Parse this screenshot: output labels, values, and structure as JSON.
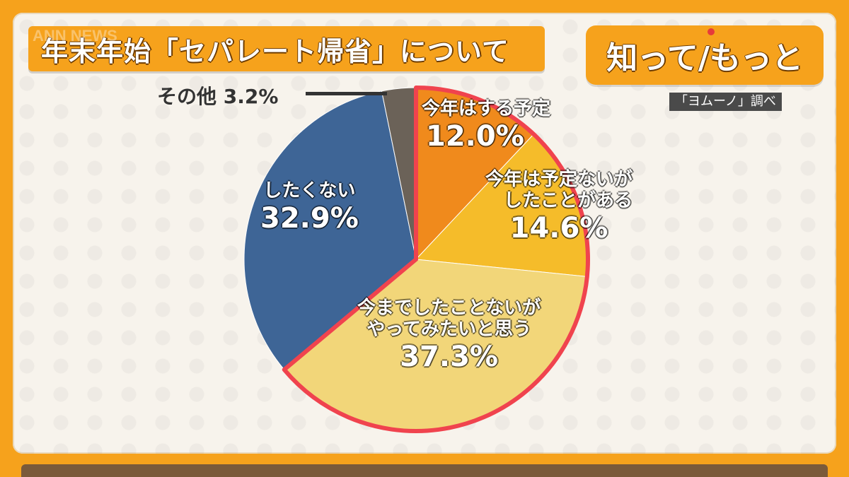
{
  "header": {
    "title": "年末年始「セパレート帰省」について",
    "brand": "知って/もっと",
    "source": "「ヨムーノ」調べ",
    "watermark": "ANN NEWS"
  },
  "colors": {
    "background": "#f6a21c",
    "slice_plan": "#f08a1c",
    "slice_experienced": "#f5bc2a",
    "slice_want": "#f2d679",
    "slice_not_want": "#3e6596",
    "slice_other": "#6b6258",
    "highlight_outline": "#f0434e"
  },
  "chart_data": {
    "type": "pie",
    "title": "年末年始「セパレート帰省」について",
    "slices": [
      {
        "label": "今年はする予定",
        "value": 12.0,
        "display": "12.0%",
        "color": "#f08a1c"
      },
      {
        "label": "今年は予定ないがしたことがある",
        "value": 14.6,
        "display": "14.6%",
        "color": "#f5bc2a"
      },
      {
        "label": "今までしたことないがやってみたいと思う",
        "value": 37.3,
        "display": "37.3%",
        "color": "#f2d679"
      },
      {
        "label": "したくない",
        "value": 32.9,
        "display": "32.9%",
        "color": "#3e6596"
      },
      {
        "label": "その他",
        "value": 3.2,
        "display": "3.2%",
        "color": "#6b6258"
      }
    ],
    "highlighted_slices": [
      "今年はする予定",
      "今年は予定ないがしたことがある",
      "今までしたことないがやってみたいと思う"
    ],
    "start_angle": "12 o'clock",
    "direction": "clockwise",
    "labels": {
      "plan": {
        "line1": "今年はする予定",
        "pct": "12.0%"
      },
      "experienced": {
        "line1": "今年は予定ないが",
        "line2": "したことがある",
        "pct": "14.6%"
      },
      "want": {
        "line1": "今までしたことないが",
        "line2": "やってみたいと思う",
        "pct": "37.3%"
      },
      "not_want": {
        "line1": "したくない",
        "pct": "32.9%"
      },
      "other": {
        "text": "その他 3.2%"
      }
    }
  }
}
